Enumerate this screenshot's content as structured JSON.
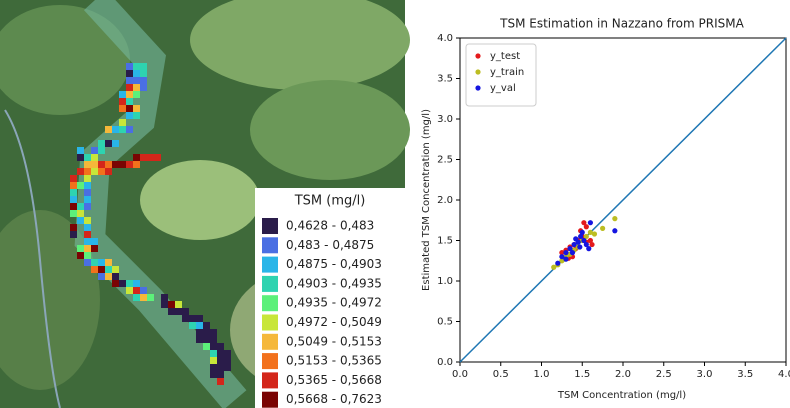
{
  "map": {
    "legend_title": "TSM (mg/l)",
    "legend": [
      {
        "label": "0,4628 - 0,483",
        "color": "#2a1c4a"
      },
      {
        "label": "0,483 - 0,4875",
        "color": "#4a6fe3"
      },
      {
        "label": "0,4875 - 0,4903",
        "color": "#29b5e8"
      },
      {
        "label": "0,4903 - 0,4935",
        "color": "#2ed3b0"
      },
      {
        "label": "0,4935 - 0,4972",
        "color": "#5cf07a"
      },
      {
        "label": "0,4972 - 0,5049",
        "color": "#c8e639"
      },
      {
        "label": "0,5049 - 0,5153",
        "color": "#f5b83a"
      },
      {
        "label": "0,5153 - 0,5365",
        "color": "#f2711c"
      },
      {
        "label": "0,5365 - 0,5668",
        "color": "#d3261a"
      },
      {
        "label": "0,5668 - 0,7623",
        "color": "#7a0403"
      }
    ]
  },
  "chart_data": {
    "type": "scatter",
    "title": "TSM Estimation in Nazzano from PRISMA",
    "x_label": "TSM Concentration (mg/l)",
    "y_label": "Estimated TSM Concentration (mg/l)",
    "xlim": [
      0,
      4
    ],
    "ylim": [
      0,
      4
    ],
    "xticks": [
      {
        "value": 0,
        "label": "0.0"
      },
      {
        "value": 0.5,
        "label": "0.5"
      },
      {
        "value": 1,
        "label": "1.0"
      },
      {
        "value": 1.5,
        "label": "1.5"
      },
      {
        "value": 2,
        "label": "2.0"
      },
      {
        "value": 2.5,
        "label": "2.5"
      },
      {
        "value": 3,
        "label": "3.0"
      },
      {
        "value": 3.5,
        "label": "3.5"
      },
      {
        "value": 4,
        "label": "4.0"
      }
    ],
    "yticks": [
      {
        "value": 0,
        "label": "0.0"
      },
      {
        "value": 0.5,
        "label": "0.5"
      },
      {
        "value": 1,
        "label": "1.0"
      },
      {
        "value": 1.5,
        "label": "1.5"
      },
      {
        "value": 2,
        "label": "2.0"
      },
      {
        "value": 2.5,
        "label": "2.5"
      },
      {
        "value": 3,
        "label": "3.0"
      },
      {
        "value": 3.5,
        "label": "3.5"
      },
      {
        "value": 4,
        "label": "4.0"
      }
    ],
    "identity_line": true,
    "identity_color": "#1f77b4",
    "legend_position": "upper left",
    "series": [
      {
        "name": "y_test",
        "color": "#e41a1c",
        "x": [
          1.25,
          1.3,
          1.35,
          1.4,
          1.42,
          1.45,
          1.5,
          1.52,
          1.55,
          1.6,
          1.62,
          1.38,
          1.48,
          1.33,
          1.55
        ],
        "values": [
          1.35,
          1.38,
          1.42,
          1.45,
          1.4,
          1.5,
          1.55,
          1.72,
          1.48,
          1.5,
          1.45,
          1.3,
          1.62,
          1.28,
          1.67
        ]
      },
      {
        "name": "y_train",
        "color": "#bcbd22",
        "x": [
          1.15,
          1.2,
          1.25,
          1.3,
          1.4,
          1.45,
          1.5,
          1.55,
          1.6,
          1.75,
          1.9,
          1.35,
          1.65,
          1.28
        ],
        "values": [
          1.17,
          1.2,
          1.25,
          1.3,
          1.38,
          1.42,
          1.5,
          1.55,
          1.6,
          1.65,
          1.77,
          1.33,
          1.58,
          1.27
        ]
      },
      {
        "name": "y_val",
        "color": "#1515e0",
        "x": [
          1.2,
          1.25,
          1.3,
          1.35,
          1.4,
          1.42,
          1.45,
          1.48,
          1.5,
          1.52,
          1.55,
          1.6,
          1.9,
          1.38,
          1.47,
          1.3,
          1.58
        ],
        "values": [
          1.22,
          1.3,
          1.35,
          1.4,
          1.45,
          1.52,
          1.48,
          1.55,
          1.6,
          1.5,
          1.45,
          1.72,
          1.62,
          1.35,
          1.42,
          1.27,
          1.4
        ]
      }
    ]
  }
}
